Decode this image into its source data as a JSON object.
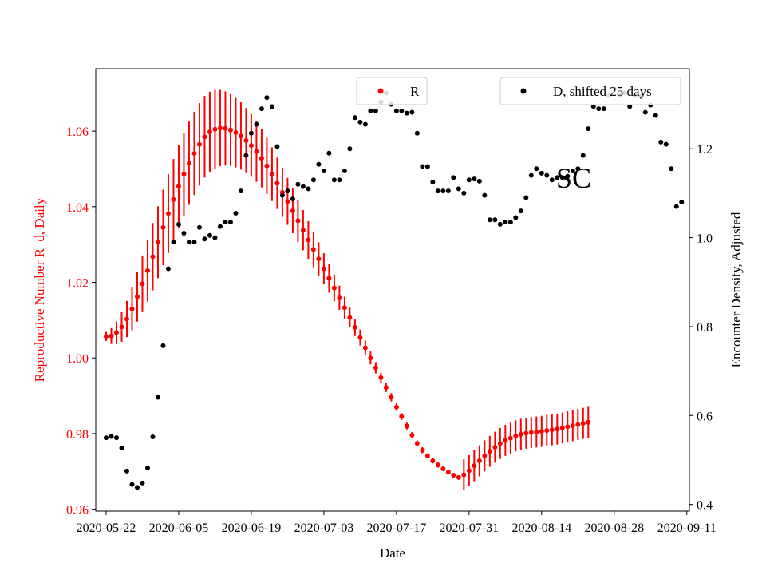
{
  "chart_data": {
    "type": "scatter",
    "title": "",
    "annotation": "SC",
    "xlabel": "Date",
    "ylabel_left": "Reproductive Number R_d, Daily",
    "ylabel_right": "Encounter Density, Adjusted",
    "left_axis_color": "#ff0000",
    "right_axis_color": "#000000",
    "x_start_date": "2020-05-22",
    "xlim_days": [
      -2.0,
      112.5
    ],
    "xtick_labels": [
      "2020-05-22",
      "2020-06-05",
      "2020-06-19",
      "2020-07-03",
      "2020-07-17",
      "2020-07-31",
      "2020-08-14",
      "2020-08-28",
      "2020-09-11"
    ],
    "ylim_left": [
      0.9595,
      1.0765
    ],
    "ytick_labels_left": [
      "0.96",
      "0.98",
      "1.00",
      "1.02",
      "1.04",
      "1.06"
    ],
    "ylim_right": [
      0.385,
      1.38
    ],
    "ytick_labels_right": [
      "0.4",
      "0.6",
      "0.8",
      "1.0",
      "1.2"
    ],
    "legend_left": {
      "label": "R",
      "color": "#ff0000",
      "position": "top-center"
    },
    "legend_right": {
      "label": "D, shifted 25 days",
      "color": "#000000",
      "position": "top-right"
    },
    "grid": false,
    "series": [
      {
        "name": "R",
        "color": "#ff0000",
        "marker": "dot with vertical error bar",
        "x_day": [
          0,
          1,
          2,
          3,
          4,
          5,
          6,
          7,
          8,
          9,
          10,
          11,
          12,
          13,
          14,
          15,
          16,
          17,
          18,
          19,
          20,
          21,
          22,
          23,
          24,
          25,
          26,
          27,
          28,
          29,
          30,
          31,
          32,
          33,
          34,
          35,
          36,
          37,
          38,
          39,
          40,
          41,
          42,
          43,
          44,
          45,
          46,
          47,
          48,
          49,
          50,
          51,
          52,
          53,
          54,
          55,
          56,
          57,
          58,
          59,
          60,
          61,
          62,
          63,
          64,
          65,
          66,
          67,
          68,
          69,
          70,
          71,
          72,
          73,
          74,
          75,
          76,
          77,
          78,
          79,
          80,
          81,
          82,
          83,
          84,
          85,
          86,
          87,
          88,
          89,
          90,
          91,
          92,
          93
        ],
        "y": [
          1.0057,
          1.0058,
          1.0067,
          1.0082,
          1.0103,
          1.013,
          1.0162,
          1.0196,
          1.0231,
          1.0268,
          1.0306,
          1.0345,
          1.0382,
          1.0419,
          1.0454,
          1.0486,
          1.0515,
          1.0541,
          1.0565,
          1.0585,
          1.0598,
          1.0605,
          1.0608,
          1.0607,
          1.0603,
          1.0596,
          1.0587,
          1.0575,
          1.0562,
          1.0546,
          1.0528,
          1.0508,
          1.0486,
          1.0462,
          1.0438,
          1.0414,
          1.0389,
          1.0363,
          1.0338,
          1.0312,
          1.0287,
          1.0262,
          1.0236,
          1.0211,
          1.0185,
          1.0159,
          1.0133,
          1.0107,
          1.0081,
          1.0054,
          1.0027,
          1.0,
          0.9974,
          0.9948,
          0.9922,
          0.9896,
          0.987,
          0.9845,
          0.982,
          0.9796,
          0.9774,
          0.9756,
          0.9741,
          0.9728,
          0.9717,
          0.9707,
          0.9698,
          0.969,
          0.9684,
          0.9691,
          0.9702,
          0.9715,
          0.9728,
          0.9741,
          0.9753,
          0.9764,
          0.9774,
          0.9782,
          0.9788,
          0.9794,
          0.9798,
          0.9801,
          0.9803,
          0.9804,
          0.9806,
          0.9808,
          0.981,
          0.9812,
          0.9815,
          0.9818,
          0.9821,
          0.9824,
          0.9827,
          0.983
        ],
        "error_halfwidth": [
          0.0012,
          0.0021,
          0.003,
          0.0039,
          0.0048,
          0.0057,
          0.0066,
          0.0075,
          0.0082,
          0.0089,
          0.0095,
          0.01,
          0.0104,
          0.0107,
          0.0109,
          0.011,
          0.011,
          0.011,
          0.0109,
          0.0108,
          0.0106,
          0.0104,
          0.0101,
          0.0098,
          0.0095,
          0.0092,
          0.0089,
          0.0086,
          0.0083,
          0.008,
          0.0077,
          0.0074,
          0.0071,
          0.0068,
          0.0065,
          0.0062,
          0.0059,
          0.0056,
          0.0053,
          0.005,
          0.0047,
          0.0044,
          0.0041,
          0.0038,
          0.0035,
          0.0032,
          0.0029,
          0.0026,
          0.0023,
          0.0021,
          0.0019,
          0.0017,
          0.0015,
          0.0013,
          0.0012,
          0.0011,
          0.001,
          0.0009,
          0.0009,
          0.0008,
          0.0008,
          0.0008,
          0.0007,
          0.0007,
          0.0007,
          0.0006,
          0.0006,
          0.0006,
          0.0006,
          0.0041,
          0.0041,
          0.0041,
          0.0041,
          0.0041,
          0.0041,
          0.0041,
          0.0041,
          0.0041,
          0.0041,
          0.0041,
          0.0041,
          0.0041,
          0.0041,
          0.0041,
          0.0041,
          0.0041,
          0.0041,
          0.0041,
          0.0041,
          0.0041,
          0.0041,
          0.0041,
          0.0041,
          0.0041
        ]
      },
      {
        "name": "D, shifted 25 days",
        "color": "#000000",
        "marker": "dot",
        "x_day": [
          0,
          1,
          2,
          3,
          4,
          5,
          6,
          7,
          8,
          9,
          10,
          11,
          12,
          13,
          14,
          15,
          16,
          17,
          18,
          19,
          20,
          21,
          22,
          23,
          24,
          25,
          26,
          27,
          28,
          29,
          30,
          31,
          32,
          33,
          34,
          35,
          36,
          37,
          38,
          39,
          40,
          41,
          42,
          43,
          44,
          45,
          46,
          47,
          48,
          49,
          50,
          51,
          52,
          53,
          54,
          55,
          56,
          57,
          58,
          59,
          60,
          61,
          62,
          63,
          64,
          65,
          66,
          67,
          68,
          69,
          70,
          71,
          72,
          73,
          74,
          75,
          76,
          77,
          78,
          79,
          80,
          81,
          82,
          83,
          84,
          85,
          86,
          87,
          88,
          89,
          90,
          91,
          92,
          93,
          94,
          95,
          96,
          97,
          98,
          99,
          100,
          101,
          102,
          103,
          104,
          105,
          106,
          107,
          108,
          109,
          110,
          111
        ],
        "y": [
          0.55,
          0.553,
          0.55,
          0.527,
          0.475,
          0.445,
          0.438,
          0.448,
          0.482,
          0.552,
          0.641,
          0.757,
          0.93,
          0.99,
          1.03,
          1.01,
          0.99,
          0.99,
          1.023,
          0.997,
          1.005,
          1.0,
          1.025,
          1.035,
          1.035,
          1.055,
          1.105,
          1.185,
          1.235,
          1.255,
          1.29,
          1.315,
          1.295,
          1.205,
          1.095,
          1.105,
          1.087,
          1.12,
          1.115,
          1.11,
          1.13,
          1.165,
          1.15,
          1.19,
          1.13,
          1.13,
          1.15,
          1.2,
          1.27,
          1.26,
          1.255,
          1.285,
          1.285,
          1.305,
          1.325,
          1.3,
          1.285,
          1.285,
          1.28,
          1.282,
          1.235,
          1.16,
          1.16,
          1.125,
          1.105,
          1.105,
          1.105,
          1.135,
          1.11,
          1.1,
          1.13,
          1.132,
          1.127,
          1.095,
          1.04,
          1.04,
          1.03,
          1.035,
          1.035,
          1.045,
          1.06,
          1.09,
          1.14,
          1.155,
          1.145,
          1.14,
          1.13,
          1.135,
          1.135,
          1.138,
          1.15,
          1.155,
          1.185,
          1.245,
          1.295,
          1.29,
          1.29,
          1.32,
          1.335,
          1.32,
          1.325,
          1.295,
          1.32,
          1.318,
          1.282,
          1.298,
          1.275,
          1.215,
          1.21,
          1.155,
          1.07,
          1.08
        ]
      }
    ]
  }
}
